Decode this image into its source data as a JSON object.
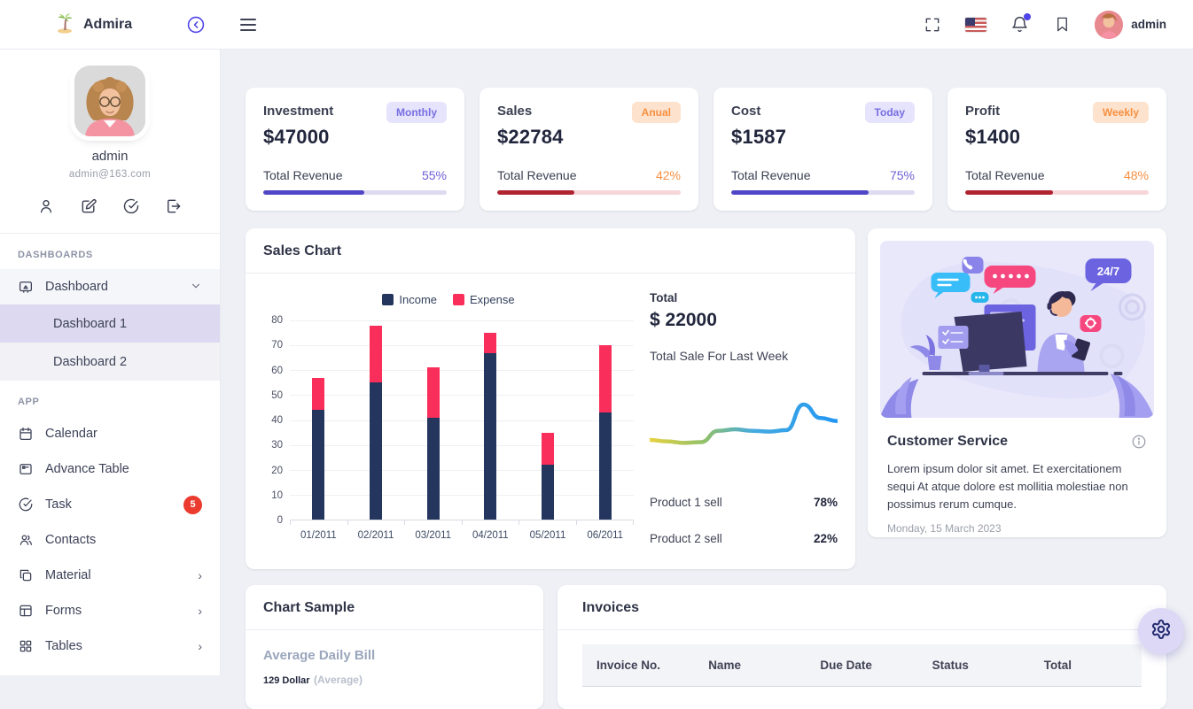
{
  "header": {
    "brand": "Admira",
    "logo_icon": "palm-tree-icon",
    "collapse_icon": "circle-chevron-left-icon",
    "menu_icon": "hamburger-icon",
    "right": {
      "fullscreen_icon": "fullscreen-icon",
      "language_flag": "us-flag-icon",
      "bell_icon": "bell-icon",
      "has_notification_dot": true,
      "bookmark_icon": "bookmark-icon",
      "user_name": "admin"
    }
  },
  "sidebar": {
    "user": {
      "name": "admin",
      "email": "admin@163.com",
      "action_icons": [
        "user-icon",
        "edit-icon",
        "check-circle-icon",
        "logout-icon"
      ]
    },
    "sections": [
      {
        "title": "DASHBOARDS",
        "items": [
          {
            "label": "Dashboard",
            "icon": "dashboard",
            "expanded": true,
            "children": [
              {
                "label": "Dashboard 1",
                "active": true
              },
              {
                "label": "Dashboard 2",
                "active": false
              }
            ]
          }
        ]
      },
      {
        "title": "APP",
        "items": [
          {
            "label": "Calendar",
            "icon": "calendar"
          },
          {
            "label": "Advance Table",
            "icon": "advtable"
          },
          {
            "label": "Task",
            "icon": "task",
            "badge": "5"
          },
          {
            "label": "Contacts",
            "icon": "contacts"
          },
          {
            "label": "Material",
            "icon": "material",
            "arrow": true
          },
          {
            "label": "Forms",
            "icon": "forms",
            "arrow": true
          },
          {
            "label": "Tables",
            "icon": "tables",
            "arrow": true
          }
        ]
      }
    ]
  },
  "stat_cards": [
    {
      "title": "Investment",
      "badge": "Monthly",
      "badge_style": "purple",
      "value": "$47000",
      "label": "Total Revenue",
      "percent": 55,
      "percent_text": "55%",
      "percent_color": "#6e5fd6",
      "bar_color": "#5147c6",
      "track_color": "#dedbf1"
    },
    {
      "title": "Sales",
      "badge": "Anual",
      "badge_style": "orange",
      "value": "$22784",
      "label": "Total Revenue",
      "percent": 42,
      "percent_text": "42%",
      "percent_color": "#f79042",
      "bar_color": "#b02331",
      "track_color": "#f6d6d9"
    },
    {
      "title": "Cost",
      "badge": "Today",
      "badge_style": "purple",
      "value": "$1587",
      "label": "Total Revenue",
      "percent": 75,
      "percent_text": "75%",
      "percent_color": "#6e5fd6",
      "bar_color": "#5147c6",
      "track_color": "#dedbf1"
    },
    {
      "title": "Profit",
      "badge": "Weekly",
      "badge_style": "orange",
      "value": "$1400",
      "label": "Total Revenue",
      "percent": 48,
      "percent_text": "48%",
      "percent_color": "#f79042",
      "bar_color": "#b02331",
      "track_color": "#f6d6d9"
    }
  ],
  "sales_chart": {
    "title": "Sales Chart",
    "total_label": "Total",
    "total_value": "$ 22000",
    "subtitle": "Total Sale For Last Week",
    "products": [
      {
        "label": "Product 1 sell",
        "value": "78%"
      },
      {
        "label": "Product 2 sell",
        "value": "22%"
      }
    ]
  },
  "chart_data": [
    {
      "type": "bar",
      "stacked": true,
      "title": "Sales Chart",
      "categories": [
        "01/2011",
        "02/2011",
        "03/2011",
        "04/2011",
        "05/2011",
        "06/2011"
      ],
      "series": [
        {
          "name": "Income",
          "color": "#24365e",
          "values": [
            44,
            55,
            41,
            67,
            22,
            43
          ]
        },
        {
          "name": "Expense",
          "color": "#fa2e5b",
          "values": [
            13,
            23,
            20,
            8,
            13,
            27
          ]
        }
      ],
      "xlabel": "",
      "ylabel": "",
      "ylim": [
        0,
        80
      ],
      "yticks": [
        0,
        10,
        20,
        30,
        40,
        50,
        60,
        70,
        80
      ],
      "grid": true,
      "legend_position": "top"
    },
    {
      "type": "line",
      "title": "Total Sale For Last Week sparkline",
      "x": [
        0,
        1,
        2,
        3,
        4,
        5,
        6,
        7,
        8,
        9,
        10,
        11
      ],
      "values": [
        33,
        31,
        29,
        30,
        45,
        47,
        45,
        44,
        46,
        80,
        62,
        58
      ],
      "scale": "relative 0-100, no visible axes",
      "gradient": [
        "#e8d23f",
        "#8ec06c",
        "#2196f3"
      ],
      "grid": false,
      "legend_position": "none"
    }
  ],
  "customer_service": {
    "title": "Customer Service",
    "info_icon": "info-circle-icon",
    "illustration_badge": "24/7",
    "text": "Lorem ipsum dolor sit amet. Et exercitationem sequi At atque dolore est mollitia molestiae non possimus rerum cumque.",
    "date": "Monday, 15 March 2023"
  },
  "chart_sample": {
    "title": "Chart Sample",
    "metric_title": "Average Daily Bill",
    "metric_value": "129 Dollar",
    "metric_note": "(Average)"
  },
  "invoices": {
    "title": "Invoices",
    "columns": [
      "Invoice No.",
      "Name",
      "Due Date",
      "Status",
      "Total"
    ]
  },
  "fab": {
    "icon": "gear-icon"
  },
  "colors": {
    "accent_indigo": "#4d43e8",
    "navy_bar": "#24365e",
    "pink_bar": "#fa2e5b",
    "task_badge_red": "#ea3b2e",
    "sidebar_active_bg": "#dcd9f0",
    "main_bg": "#eef0f5"
  }
}
